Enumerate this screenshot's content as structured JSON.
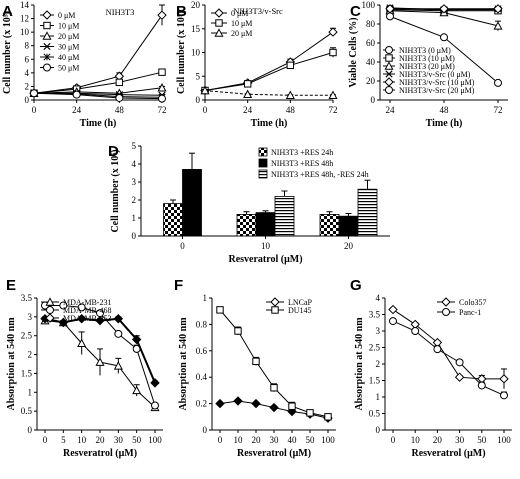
{
  "chart_data": [
    {
      "panel": "A",
      "type": "line",
      "inset_label": "NIH3T3",
      "xlabel": "Time (h)",
      "ylabel": "Cell number (x 10⁵)",
      "x": [
        0,
        24,
        48,
        72
      ],
      "xticks": [
        "0",
        "24",
        "48",
        "72"
      ],
      "ylim": [
        0,
        14
      ],
      "yticks": [
        "0",
        "2",
        "4",
        "6",
        "8",
        "10",
        "12",
        "14"
      ],
      "legend_position": "top-left",
      "grid": false,
      "series": [
        {
          "name": "0 μM",
          "marker": "diamond",
          "values": [
            1,
            1.8,
            3.5,
            12.5
          ],
          "err": [
            0.1,
            0.2,
            0.5,
            1.5
          ]
        },
        {
          "name": "10 μM",
          "marker": "square",
          "values": [
            1,
            1.6,
            2.6,
            4.1
          ],
          "err": [
            0.1,
            0.2,
            0.3,
            0.4
          ]
        },
        {
          "name": "20 μM",
          "marker": "triangle",
          "values": [
            1,
            1.2,
            1.0,
            1.8
          ],
          "err": [
            0.1,
            0.1,
            0.1,
            0.2
          ]
        },
        {
          "name": "30 μM",
          "marker": "x",
          "values": [
            1,
            1.0,
            0.8,
            0.7
          ],
          "err": [
            0.1,
            0.1,
            0.1,
            0.1
          ]
        },
        {
          "name": "40 μM",
          "marker": "cross",
          "values": [
            1,
            0.9,
            0.5,
            0.4
          ],
          "err": [
            0.1,
            0.1,
            0.1,
            0.1
          ]
        },
        {
          "name": "50 μM",
          "marker": "circle",
          "values": [
            1,
            0.8,
            0.3,
            0.2
          ],
          "err": [
            0.1,
            0.1,
            0.1,
            0.1
          ]
        }
      ]
    },
    {
      "panel": "B",
      "type": "line",
      "inset_label": "NIH3T3/v-Src",
      "xlabel": "Time (h)",
      "ylabel": "Cell number (x 10⁵)",
      "x": [
        0,
        24,
        48,
        72
      ],
      "xticks": [
        "0",
        "24",
        "48",
        "72"
      ],
      "ylim": [
        0,
        20
      ],
      "yticks": [
        "0",
        "5",
        "10",
        "15",
        "20"
      ],
      "legend_position": "top-left",
      "grid": false,
      "series": [
        {
          "name": "0 μM",
          "marker": "diamond",
          "values": [
            2,
            3.6,
            8,
            14.3
          ],
          "err": [
            0.2,
            0.3,
            0.6,
            0.8
          ]
        },
        {
          "name": "10 μM",
          "marker": "square",
          "values": [
            2,
            3.4,
            7.3,
            10
          ],
          "err": [
            0.2,
            0.3,
            0.5,
            1.0
          ]
        },
        {
          "name": "20 μM",
          "marker": "triangle",
          "values": [
            2,
            1.2,
            1.0,
            1.0
          ],
          "err": [
            0.2,
            0.1,
            0.1,
            0.1
          ]
        }
      ]
    },
    {
      "panel": "C",
      "type": "line",
      "xlabel": "Time (h)",
      "ylabel": "Viable Cells (%)",
      "x": [
        24,
        48,
        72
      ],
      "xticks": [
        "24",
        "48",
        "72"
      ],
      "ylim": [
        0,
        100
      ],
      "yticks": [
        "0",
        "20",
        "40",
        "60",
        "80",
        "100"
      ],
      "legend_position": "bottom-left",
      "grid": false,
      "series": [
        {
          "name": "NIH3T3 (0 μM)",
          "marker": "circle",
          "values": [
            96,
            95,
            95
          ],
          "err": [
            1,
            1,
            1
          ]
        },
        {
          "name": "NIH3T3 (10 μM)",
          "marker": "square",
          "values": [
            95,
            94,
            94
          ],
          "err": [
            1,
            1,
            1
          ]
        },
        {
          "name": "NIH3T3 (20 μM)",
          "marker": "triangle",
          "values": [
            94,
            92,
            78
          ],
          "err": [
            1,
            2,
            5
          ]
        },
        {
          "name": "NIH3T3/v-Src (0 μM)",
          "marker": "x",
          "values": [
            97,
            95,
            96
          ],
          "err": [
            1,
            1,
            1
          ]
        },
        {
          "name": "NIH3T3/v-Src (10 μM)",
          "marker": "diamond",
          "values": [
            96,
            96,
            96
          ],
          "err": [
            1,
            1,
            1
          ]
        },
        {
          "name": "NIH3T3/v-Src (20 μM)",
          "marker": "circle",
          "values": [
            88,
            66,
            18
          ],
          "err": [
            1,
            2,
            1
          ]
        }
      ]
    },
    {
      "panel": "D",
      "type": "bar",
      "xlabel": "Resveratrol (μM)",
      "ylabel": "Cell number (x 10⁵)",
      "categories": [
        "0",
        "10",
        "20"
      ],
      "ylim": [
        0,
        5
      ],
      "yticks": [
        "0",
        "1",
        "2",
        "3",
        "4",
        "5"
      ],
      "legend_position": "top-right",
      "grid": false,
      "series": [
        {
          "name": "NIH3T3 +RES 24h",
          "fill": "checker",
          "values": [
            1.8,
            1.2,
            1.2
          ],
          "err": [
            0.2,
            0.15,
            0.15
          ]
        },
        {
          "name": "NIH3T3 +RES 48h",
          "fill": "black",
          "values": [
            3.7,
            1.3,
            1.1
          ],
          "err": [
            0.9,
            0.1,
            0.15
          ]
        },
        {
          "name": "NIH3T3 +RES 48h, -RES 24h",
          "fill": "stripes",
          "values": [
            null,
            2.2,
            2.6
          ],
          "err": [
            null,
            0.3,
            0.5
          ]
        }
      ]
    },
    {
      "panel": "E",
      "type": "line",
      "xlabel": "Resveratrol (μM)",
      "ylabel": "Absorption at 540 nm",
      "categories": [
        "0",
        "5",
        "10",
        "20",
        "30",
        "50",
        "100"
      ],
      "ylim": [
        0,
        3.5
      ],
      "yticks": [
        "0",
        "0.5",
        "1",
        "1.5",
        "2",
        "2.5",
        "3",
        "3.5"
      ],
      "legend_position": "top-left",
      "grid": false,
      "series": [
        {
          "name": "MDA-MB-231",
          "marker": "triangle",
          "values": [
            2.9,
            2.85,
            2.3,
            1.8,
            1.7,
            1.05,
            0.6
          ],
          "err": [
            0.05,
            0.05,
            0.3,
            0.35,
            0.2,
            0.15,
            0.05
          ]
        },
        {
          "name": "MDA-MB-468",
          "marker": "circle",
          "values": [
            3.3,
            3.3,
            3.25,
            3.1,
            2.55,
            2.15,
            0.65
          ],
          "err": [
            0.05,
            0.05,
            0.05,
            0.05,
            0.05,
            0.1,
            0.05
          ]
        },
        {
          "name": "MDA-MB-453",
          "marker": "diamond",
          "values": [
            2.95,
            2.85,
            2.95,
            2.9,
            2.95,
            2.4,
            1.25
          ],
          "err": [
            0.05,
            0.05,
            0.05,
            0.05,
            0.05,
            0.1,
            0.05
          ]
        }
      ]
    },
    {
      "panel": "F",
      "type": "line",
      "xlabel": "Resveratrol (μM)",
      "ylabel": "Absorption at 540 nm",
      "categories": [
        "0",
        "10",
        "20",
        "30",
        "40",
        "50",
        "100"
      ],
      "ylim": [
        0,
        1
      ],
      "yticks": [
        "0",
        "0.2",
        "0.4",
        "0.6",
        "0.8",
        "1"
      ],
      "legend_position": "top-right",
      "grid": false,
      "series": [
        {
          "name": "LNCaP",
          "marker": "diamond",
          "values": [
            0.2,
            0.22,
            0.2,
            0.17,
            0.14,
            0.12,
            0.09
          ],
          "err": [
            0.01,
            0.01,
            0.01,
            0.01,
            0.01,
            0.01,
            0.01
          ]
        },
        {
          "name": "DU145",
          "marker": "square",
          "values": [
            0.91,
            0.75,
            0.52,
            0.32,
            0.18,
            0.13,
            0.1
          ],
          "err": [
            0.02,
            0.03,
            0.03,
            0.03,
            0.03,
            0.02,
            0.01
          ]
        }
      ]
    },
    {
      "panel": "G",
      "type": "line",
      "xlabel": "Resveratrol (μM)",
      "ylabel": "Absorption at 540 nm",
      "categories": [
        "0",
        "10",
        "20",
        "30",
        "50",
        "100"
      ],
      "ylim": [
        0,
        4
      ],
      "yticks": [
        "0",
        "0.5",
        "1",
        "1.5",
        "2",
        "2.5",
        "3",
        "3.5",
        "4"
      ],
      "legend_position": "top-right",
      "grid": false,
      "series": [
        {
          "name": "Colo357",
          "marker": "diamond",
          "values": [
            3.65,
            3.2,
            2.65,
            1.6,
            1.55,
            1.55
          ],
          "err": [
            0.05,
            0.05,
            0.05,
            0.05,
            0.1,
            0.3
          ]
        },
        {
          "name": "Panc-1",
          "marker": "circle",
          "values": [
            3.3,
            3.0,
            2.45,
            2.05,
            1.35,
            1.05
          ],
          "err": [
            0.05,
            0.05,
            0.1,
            0.05,
            0.1,
            0.1
          ]
        }
      ]
    }
  ]
}
